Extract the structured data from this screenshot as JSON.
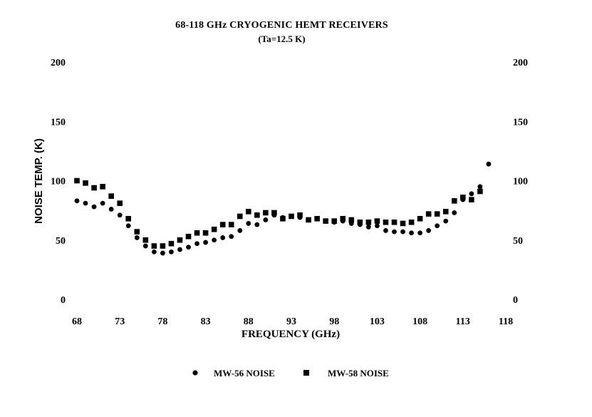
{
  "chart_data": {
    "type": "scatter",
    "title": "68-118 GHz  CRYOGENIC HEMT RECEIVERS",
    "subtitle": "(Ta=12.5 K)",
    "xlabel": "FREQUENCY (GHz)",
    "ylabel": "NOISE TEMP. (K)",
    "xlim": [
      68,
      118
    ],
    "ylim": [
      0,
      200
    ],
    "x_ticks": [
      "68",
      "73",
      "78",
      "83",
      "88",
      "93",
      "98",
      "103",
      "108",
      "113",
      "118"
    ],
    "y_ticks": [
      "0",
      "50",
      "100",
      "150",
      "200"
    ],
    "grid": false,
    "legend_position": "bottom",
    "series": [
      {
        "name": "MW-56 NOISE",
        "marker": "circle",
        "points": [
          [
            68,
            83
          ],
          [
            69,
            81
          ],
          [
            70,
            78
          ],
          [
            71,
            81
          ],
          [
            72,
            76
          ],
          [
            73,
            71
          ],
          [
            74,
            62
          ],
          [
            75,
            52
          ],
          [
            76,
            45
          ],
          [
            77,
            40
          ],
          [
            78,
            39
          ],
          [
            79,
            40
          ],
          [
            80,
            42
          ],
          [
            81,
            44
          ],
          [
            82,
            47
          ],
          [
            83,
            48
          ],
          [
            84,
            50
          ],
          [
            85,
            52
          ],
          [
            86,
            53
          ],
          [
            87,
            58
          ],
          [
            88,
            64
          ],
          [
            89,
            63
          ],
          [
            90,
            67
          ],
          [
            91,
            71
          ],
          [
            92,
            69
          ],
          [
            93,
            70
          ],
          [
            94,
            69
          ],
          [
            95,
            67
          ],
          [
            96,
            68
          ],
          [
            97,
            66
          ],
          [
            98,
            65
          ],
          [
            99,
            66
          ],
          [
            100,
            64
          ],
          [
            101,
            63
          ],
          [
            102,
            61
          ],
          [
            103,
            62
          ],
          [
            104,
            58
          ],
          [
            105,
            57
          ],
          [
            106,
            57
          ],
          [
            107,
            56
          ],
          [
            108,
            56
          ],
          [
            109,
            58
          ],
          [
            110,
            62
          ],
          [
            111,
            66
          ],
          [
            112,
            73
          ],
          [
            113,
            84
          ],
          [
            114,
            89
          ],
          [
            115,
            95
          ],
          [
            116,
            114
          ]
        ]
      },
      {
        "name": "MW-58 NOISE",
        "marker": "square",
        "points": [
          [
            68,
            100
          ],
          [
            69,
            98
          ],
          [
            70,
            94
          ],
          [
            71,
            95
          ],
          [
            72,
            87
          ],
          [
            73,
            81
          ],
          [
            74,
            68
          ],
          [
            75,
            57
          ],
          [
            76,
            50
          ],
          [
            77,
            45
          ],
          [
            78,
            45
          ],
          [
            79,
            47
          ],
          [
            80,
            50
          ],
          [
            81,
            53
          ],
          [
            82,
            56
          ],
          [
            83,
            56
          ],
          [
            84,
            59
          ],
          [
            85,
            63
          ],
          [
            86,
            63
          ],
          [
            87,
            70
          ],
          [
            88,
            74
          ],
          [
            89,
            71
          ],
          [
            90,
            73
          ],
          [
            91,
            73
          ],
          [
            92,
            68
          ],
          [
            93,
            70
          ],
          [
            94,
            71
          ],
          [
            95,
            67
          ],
          [
            96,
            68
          ],
          [
            97,
            66
          ],
          [
            98,
            66
          ],
          [
            99,
            68
          ],
          [
            100,
            67
          ],
          [
            101,
            65
          ],
          [
            102,
            65
          ],
          [
            103,
            66
          ],
          [
            104,
            65
          ],
          [
            105,
            65
          ],
          [
            106,
            64
          ],
          [
            107,
            65
          ],
          [
            108,
            68
          ],
          [
            109,
            72
          ],
          [
            110,
            72
          ],
          [
            111,
            74
          ],
          [
            112,
            83
          ],
          [
            113,
            86
          ],
          [
            114,
            84
          ],
          [
            115,
            91
          ]
        ]
      }
    ]
  },
  "colors": {
    "marker": "#000000",
    "background": "#ffffff"
  }
}
